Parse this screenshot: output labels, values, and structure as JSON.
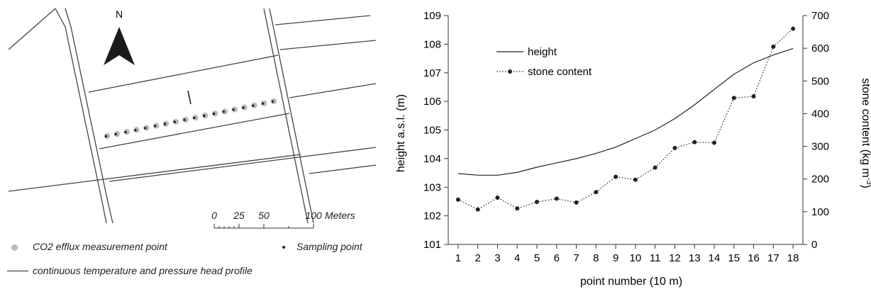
{
  "map": {
    "north_label": "N",
    "scale_ticks": [
      "0",
      "25",
      "50",
      "100"
    ],
    "scale_unit": "Meters",
    "legend": {
      "co2": "CO2 efflux measurement point",
      "sampling": "Sampling point",
      "profile": "continuous temperature and pressure head profile"
    },
    "point_count": 18,
    "colors": {
      "co2_point": "#b9b9b9",
      "sampling_point": "#222222",
      "roads": "#444444"
    }
  },
  "chart_data": {
    "type": "line",
    "xlabel": "point number (10 m)",
    "ylabel_left": "height a.s.l. (m)",
    "ylabel_right": "stone content (kg m",
    "ylabel_right_sup": "-3",
    "ylabel_right_close": ")",
    "x": [
      1,
      2,
      3,
      4,
      5,
      6,
      7,
      8,
      9,
      10,
      11,
      12,
      13,
      14,
      15,
      16,
      17,
      18
    ],
    "ylim_left": [
      101,
      109
    ],
    "ylim_right": [
      0,
      700
    ],
    "left_ticks": [
      101,
      102,
      103,
      104,
      105,
      106,
      107,
      108,
      109
    ],
    "right_ticks": [
      0,
      100,
      200,
      300,
      400,
      500,
      600,
      700
    ],
    "grid": false,
    "legend_position": "top-left",
    "series": [
      {
        "name": "height",
        "axis": "left",
        "style": "solid",
        "values": [
          103.48,
          103.42,
          103.42,
          103.52,
          103.7,
          103.85,
          104.0,
          104.18,
          104.4,
          104.7,
          105.0,
          105.4,
          105.88,
          106.42,
          106.95,
          107.35,
          107.62,
          107.85
        ]
      },
      {
        "name": "stone content",
        "axis": "right",
        "style": "dotted-markers",
        "values": [
          137,
          107,
          143,
          110,
          130,
          140,
          128,
          160,
          207,
          198,
          235,
          295,
          313,
          311,
          448,
          453,
          605,
          660
        ]
      }
    ]
  }
}
